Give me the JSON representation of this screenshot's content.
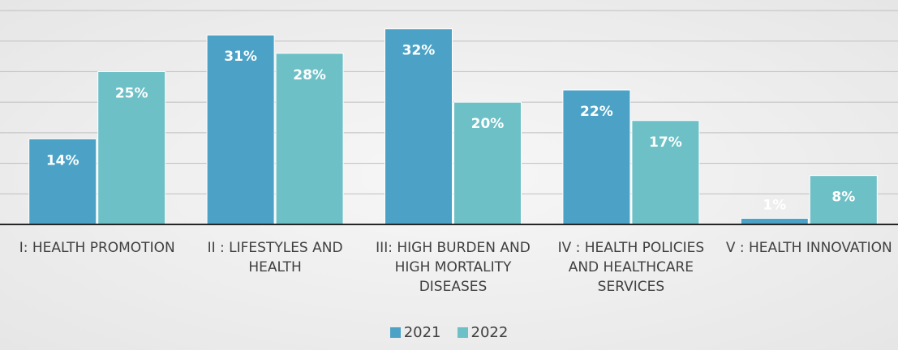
{
  "chart_data": {
    "type": "bar",
    "categories": [
      "I: HEALTH PROMOTION",
      "II : LIFESTYLES AND HEALTH",
      "III: HIGH BURDEN AND HIGH MORTALITY DISEASES",
      "IV : HEALTH POLICIES AND HEALTHCARE SERVICES",
      "V : HEALTH INNOVATION"
    ],
    "series": [
      {
        "name": "2021",
        "color": "#4ba2c6",
        "values": [
          14,
          31,
          32,
          22,
          1
        ],
        "value_labels": [
          "14%",
          "31%",
          "32%",
          "22%",
          "1%"
        ]
      },
      {
        "name": "2022",
        "color": "#6dc0c6",
        "values": [
          25,
          28,
          20,
          17,
          8
        ],
        "value_labels": [
          "25%",
          "28%",
          "20%",
          "17%",
          "8%"
        ]
      }
    ],
    "ylim": [
      0,
      35
    ],
    "yticks": [
      0,
      5,
      10,
      15,
      20,
      25,
      30,
      35
    ],
    "grid": true,
    "legend": "bottom"
  }
}
